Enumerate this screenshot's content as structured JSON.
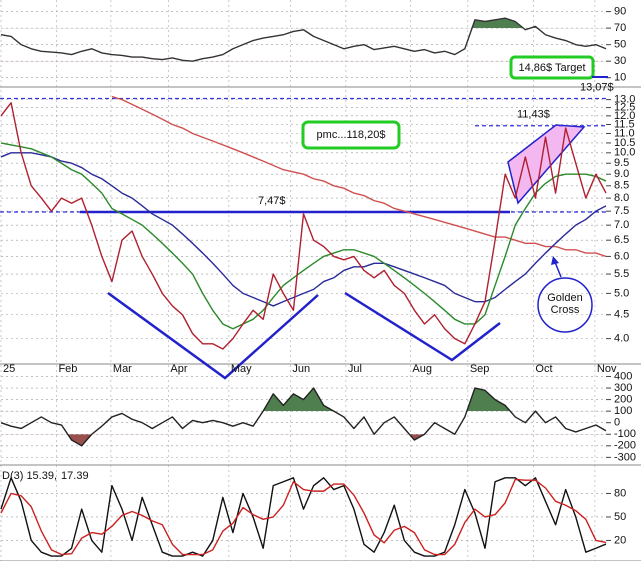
{
  "chart_data": [
    {
      "type": "line",
      "xlim": [
        0,
        60
      ],
      "ylim": [
        0,
        104
      ],
      "yticks": [
        90,
        70,
        50,
        30,
        10
      ],
      "grid": true,
      "fills": [
        {
          "above": 70,
          "color": "#4f7f4f"
        },
        {
          "below": 30,
          "color": "#9a4f4f"
        }
      ],
      "series": [
        {
          "color": "#333333",
          "values": [
            62,
            60,
            50,
            45,
            42,
            41,
            40,
            38,
            42,
            45,
            40,
            38,
            37,
            35,
            35,
            33,
            32,
            34,
            31,
            30,
            33,
            35,
            38,
            45,
            50,
            55,
            58,
            60,
            62,
            66,
            68,
            60,
            55,
            50,
            45,
            48,
            50,
            44,
            46,
            48,
            45,
            42,
            44,
            40,
            42,
            38,
            45,
            80,
            78,
            80,
            82,
            78,
            68,
            72,
            62,
            58,
            55,
            50,
            48,
            50,
            45
          ]
        }
      ]
    },
    {
      "type": "line",
      "log": true,
      "xlim": [
        0,
        60
      ],
      "ylim": [
        3.6,
        13.3
      ],
      "grid": true,
      "yticks": [
        {
          "value": 13,
          "label": "13.0"
        },
        12.5,
        {
          "value": 12,
          "label": "12.0"
        },
        11.5,
        {
          "value": 11,
          "label": "11.0"
        },
        10.5,
        {
          "value": 10,
          "label": "10.0"
        },
        9.5,
        {
          "value": 9,
          "label": "9.0"
        },
        8.5,
        {
          "value": 8,
          "label": "8.0"
        },
        7.5,
        {
          "value": 7,
          "label": "7.0"
        },
        6.5,
        {
          "value": 6,
          "label": "6.0"
        },
        5.5,
        {
          "value": 5,
          "label": "5.0"
        },
        4.5,
        {
          "value": 4,
          "label": "4.0"
        }
      ],
      "xticks": [
        {
          "value": 0,
          "label": "25"
        },
        {
          "value": 5.5,
          "label": "Feb"
        },
        {
          "value": 10.9,
          "label": "Mar"
        },
        {
          "value": 16.6,
          "label": "Apr"
        },
        {
          "value": 22.6,
          "label": "May"
        },
        {
          "value": 28.7,
          "label": "Jun"
        },
        {
          "value": 34.2,
          "label": "Jul"
        },
        {
          "value": 40.6,
          "label": "Aug"
        },
        {
          "value": 46.3,
          "label": "Sep"
        },
        {
          "value": 52.8,
          "label": "Oct"
        },
        {
          "value": 58.9,
          "label": "Nov"
        }
      ],
      "series": [
        {
          "color": "#d05050",
          "values": [
            null,
            null,
            null,
            null,
            null,
            null,
            null,
            null,
            null,
            null,
            null,
            13.2,
            13.0,
            12.7,
            12.4,
            12.1,
            11.8,
            11.5,
            11.3,
            11.0,
            10.8,
            10.6,
            10.4,
            10.2,
            10.0,
            9.8,
            9.6,
            9.4,
            9.2,
            9.1,
            9.0,
            8.8,
            8.7,
            8.5,
            8.4,
            8.2,
            8.1,
            7.9,
            7.8,
            7.6,
            7.5,
            7.4,
            7.3,
            7.2,
            7.1,
            7.0,
            6.9,
            6.8,
            6.7,
            6.6,
            6.6,
            6.5,
            6.4,
            6.4,
            6.3,
            6.3,
            6.2,
            6.2,
            6.1,
            6.1,
            6.0
          ]
        },
        {
          "color": "#2a2a9a",
          "values": [
            9.8,
            10.0,
            10.0,
            10.0,
            9.9,
            9.8,
            9.6,
            9.5,
            9.3,
            9.0,
            8.8,
            8.5,
            8.2,
            8.0,
            7.7,
            7.4,
            7.2,
            7.0,
            6.7,
            6.4,
            6.1,
            5.8,
            5.5,
            5.2,
            5.0,
            4.9,
            4.8,
            4.7,
            4.8,
            4.9,
            5.0,
            5.1,
            5.3,
            5.4,
            5.6,
            5.7,
            5.7,
            5.8,
            5.8,
            5.7,
            5.6,
            5.5,
            5.4,
            5.3,
            5.2,
            5.0,
            4.9,
            4.8,
            4.8,
            4.9,
            5.1,
            5.3,
            5.5,
            5.8,
            6.1,
            6.4,
            6.7,
            7.0,
            7.2,
            7.5,
            7.7
          ]
        },
        {
          "color": "#2a8a2a",
          "values": [
            10.5,
            10.4,
            10.3,
            10.2,
            10.0,
            9.8,
            9.5,
            9.2,
            9.0,
            8.6,
            8.2,
            7.6,
            7.4,
            7.2,
            7.0,
            6.7,
            6.4,
            6.1,
            5.8,
            5.5,
            5.0,
            4.6,
            4.3,
            4.2,
            4.3,
            4.4,
            4.6,
            4.9,
            5.2,
            5.4,
            5.6,
            5.8,
            6.0,
            6.1,
            6.2,
            6.2,
            6.1,
            6.0,
            5.8,
            5.6,
            5.4,
            5.2,
            5.0,
            4.8,
            4.6,
            4.4,
            4.3,
            4.3,
            4.5,
            5.2,
            6.0,
            7.0,
            7.6,
            8.2,
            8.6,
            8.9,
            9.0,
            9.0,
            9.0,
            8.9,
            8.7
          ]
        },
        {
          "color": "#b02030",
          "values": [
            12.0,
            12.8,
            10.0,
            8.5,
            8.0,
            7.5,
            8.0,
            7.8,
            8.0,
            7.0,
            6.0,
            5.3,
            6.5,
            6.8,
            6.0,
            5.5,
            5.0,
            4.7,
            4.5,
            4.1,
            3.9,
            3.9,
            3.8,
            4.0,
            4.3,
            4.6,
            4.4,
            5.5,
            5.0,
            4.6,
            7.4,
            6.5,
            6.3,
            6.0,
            5.9,
            6.0,
            5.6,
            5.4,
            5.6,
            5.2,
            5.0,
            4.6,
            4.3,
            4.5,
            4.2,
            4.0,
            3.9,
            4.3,
            4.8,
            6.5,
            9.0,
            8.0,
            9.8,
            8.0,
            10.8,
            8.2,
            11.3,
            9.5,
            8.0,
            9.0,
            8.2
          ]
        }
      ],
      "levels": [
        {
          "value": 7.47,
          "label": "7,47$"
        },
        {
          "value": 11.43,
          "label": "11,43$"
        },
        {
          "value": 13.07,
          "label": "13,07$"
        }
      ],
      "annotations": [
        "pmc...118,20$",
        "14,86$ Target",
        "Golden Cross"
      ]
    },
    {
      "type": "line",
      "xlim": [
        0,
        60
      ],
      "ylim": [
        -340,
        430
      ],
      "yticks": [
        400,
        300,
        200,
        100,
        0,
        -100,
        -200,
        -300
      ],
      "grid": true,
      "fills": [
        {
          "above": 100,
          "color": "#4f7f4f"
        },
        {
          "below": -100,
          "color": "#9a4f4f"
        }
      ],
      "series": [
        {
          "color": "#222222",
          "values": [
            0,
            -30,
            -50,
            0,
            50,
            0,
            -20,
            -150,
            -200,
            -100,
            -30,
            50,
            80,
            30,
            0,
            -50,
            0,
            50,
            -50,
            20,
            0,
            20,
            0,
            -30,
            0,
            -30,
            100,
            250,
            150,
            250,
            200,
            300,
            150,
            100,
            50,
            -50,
            50,
            -100,
            0,
            50,
            -50,
            -150,
            -100,
            0,
            -50,
            -100,
            50,
            300,
            280,
            200,
            150,
            50,
            0,
            100,
            0,
            50,
            -50,
            -80,
            -50,
            -20,
            -70
          ]
        }
      ]
    },
    {
      "type": "line",
      "xlim": [
        0,
        60
      ],
      "ylim": [
        -5,
        110
      ],
      "yticks": [
        80,
        50,
        20
      ],
      "grid": true,
      "title_parts": [
        "D(3) 15.39,",
        "17.39"
      ],
      "series": [
        {
          "color": "#111111",
          "values": [
            60,
            100,
            70,
            20,
            5,
            0,
            0,
            10,
            60,
            20,
            5,
            90,
            60,
            20,
            75,
            40,
            5,
            0,
            0,
            5,
            0,
            20,
            75,
            30,
            80,
            50,
            10,
            90,
            95,
            100,
            60,
            90,
            100,
            85,
            90,
            60,
            15,
            5,
            30,
            65,
            20,
            5,
            0,
            0,
            5,
            40,
            85,
            55,
            10,
            95,
            100,
            100,
            90,
            100,
            70,
            40,
            85,
            50,
            5,
            10,
            15.39
          ]
        },
        {
          "color": "#cc2020",
          "values": [
            55,
            80,
            77,
            63,
            32,
            8,
            2,
            3,
            23,
            30,
            28,
            38,
            52,
            57,
            52,
            45,
            40,
            15,
            2,
            2,
            2,
            8,
            32,
            42,
            62,
            53,
            47,
            50,
            65,
            95,
            85,
            83,
            83,
            92,
            92,
            78,
            55,
            27,
            17,
            33,
            38,
            30,
            8,
            2,
            2,
            15,
            43,
            60,
            50,
            53,
            68,
            98,
            97,
            97,
            87,
            70,
            65,
            58,
            47,
            20,
            17.39
          ]
        }
      ]
    }
  ]
}
